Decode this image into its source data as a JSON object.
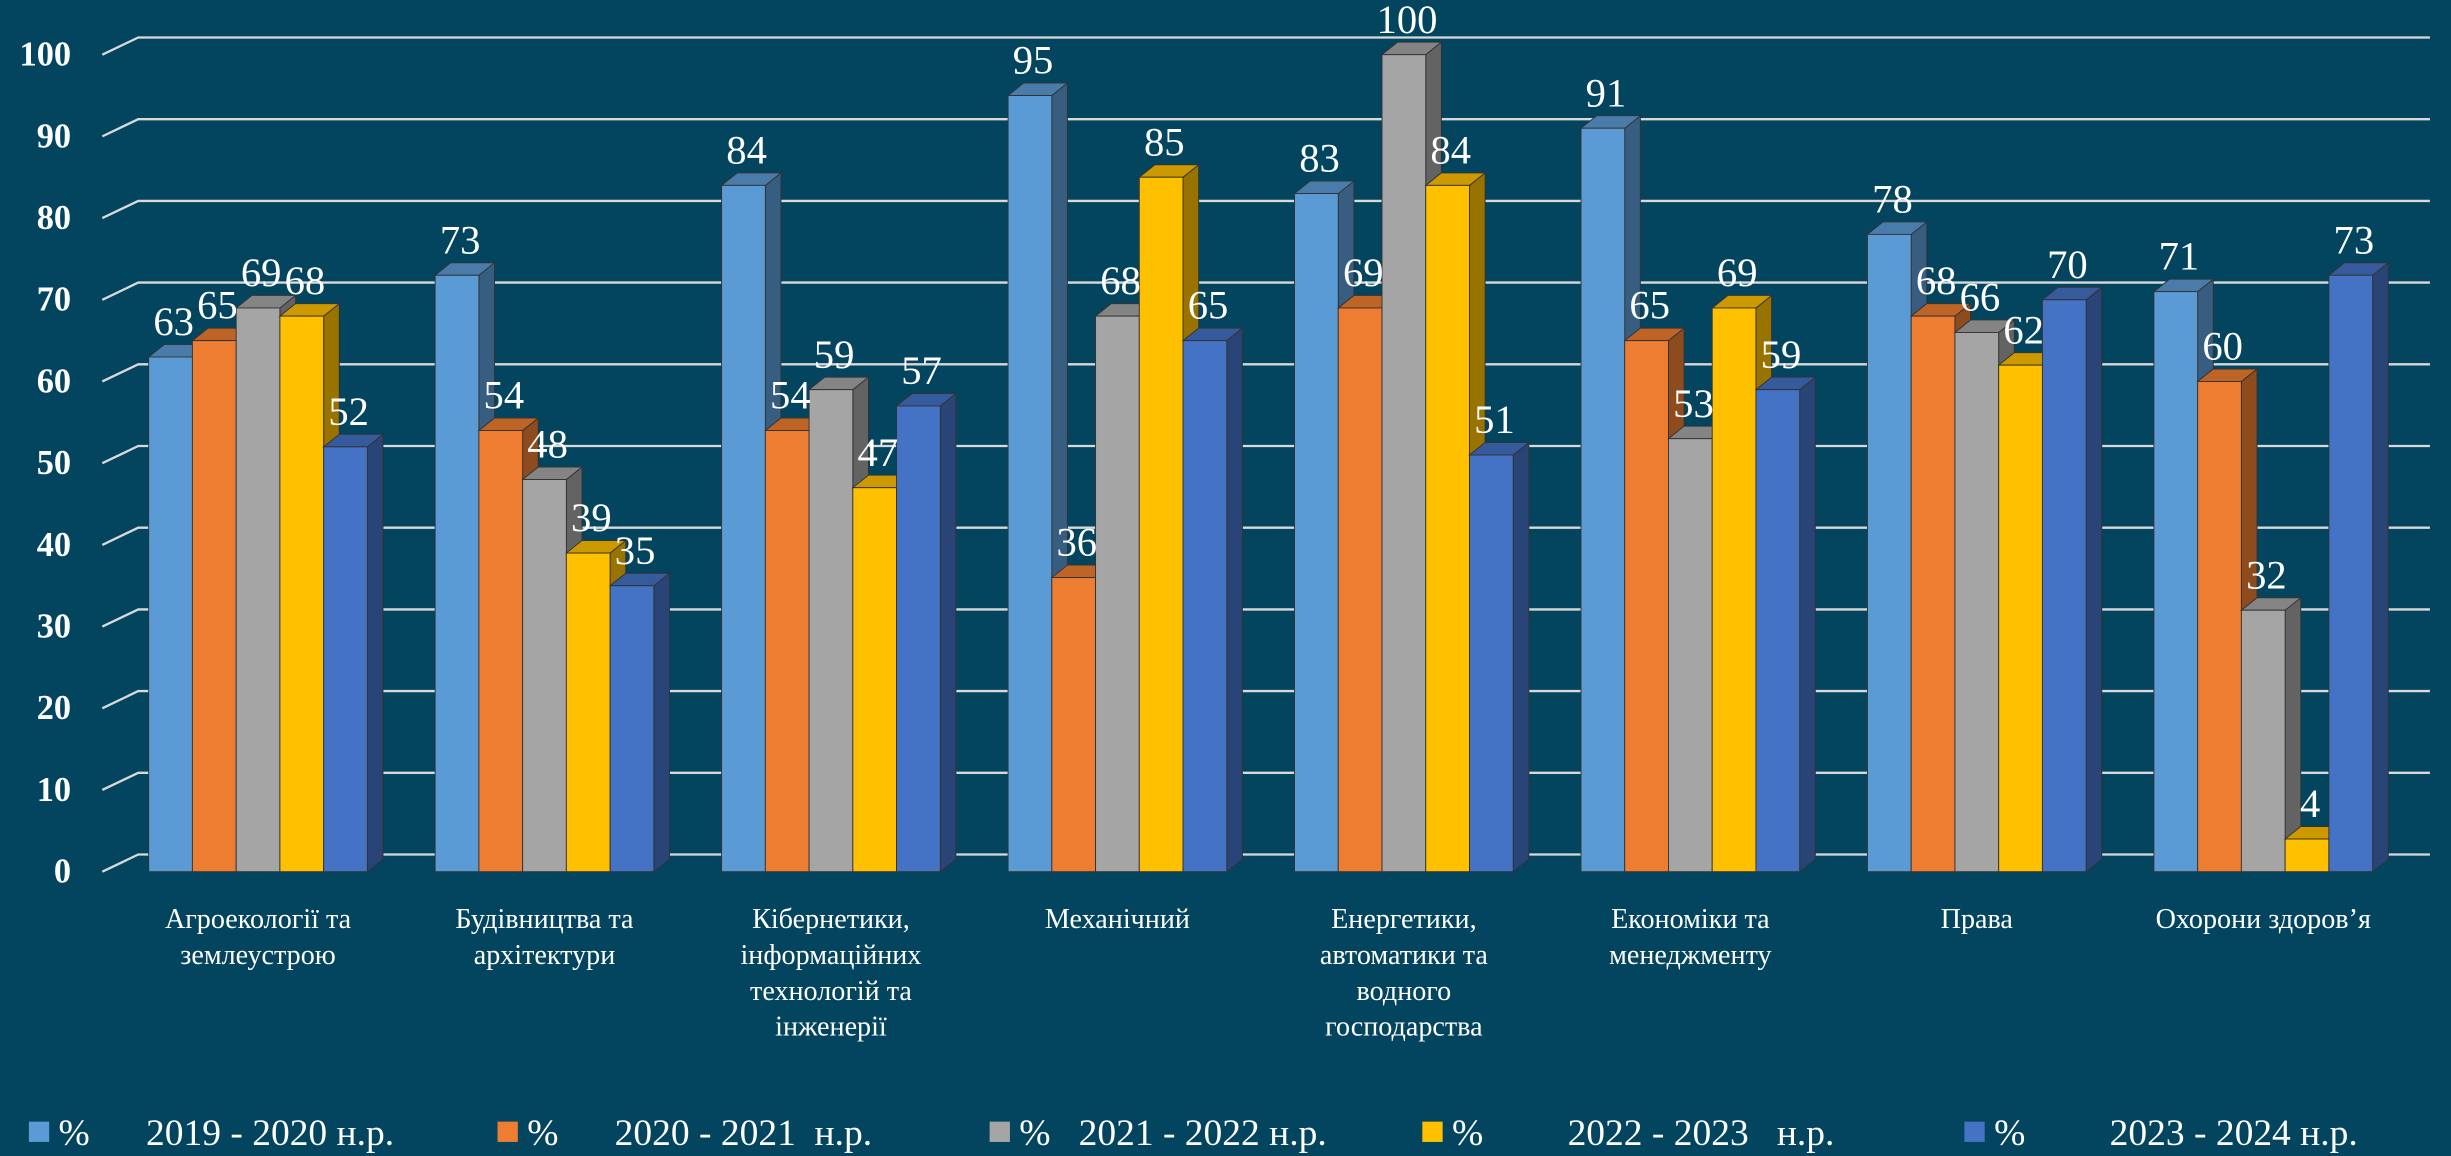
{
  "chart_data": {
    "type": "bar3d",
    "categories": [
      "Агроекології та землеустрою",
      "Будівництва та архітектури",
      "Кібернетики, інформаційних технологій та інженерії",
      "Механічний",
      "Енергетики, автоматики та водного господарства",
      "Економіки та менеджменту",
      "Права",
      "Охорони здоров’я"
    ],
    "series": [
      {
        "name": "%      2019 - 2020 н.р.",
        "color": "#5b9bd5",
        "values": [
          63,
          73,
          84,
          95,
          83,
          91,
          78,
          71
        ]
      },
      {
        "name": "%      2020 - 2021  н.р.",
        "color": "#ed7d31",
        "values": [
          65,
          54,
          54,
          36,
          69,
          65,
          68,
          60
        ]
      },
      {
        "name": "%   2021 - 2022 н.р.",
        "color": "#a5a5a5",
        "values": [
          69,
          48,
          59,
          68,
          100,
          53,
          66,
          32
        ]
      },
      {
        "name": "%         2022 - 2023   н.р.",
        "color": "#ffc000",
        "values": [
          68,
          39,
          47,
          85,
          84,
          69,
          62,
          4
        ]
      },
      {
        "name": "%         2023 - 2024 н.р.",
        "color": "#4472c4",
        "values": [
          52,
          35,
          57,
          65,
          51,
          59,
          70,
          73
        ]
      }
    ],
    "ylim": [
      0,
      100
    ],
    "yticks": [
      0,
      10,
      20,
      30,
      40,
      50,
      60,
      70,
      80,
      90,
      100
    ],
    "grid": true,
    "legend": "bottom"
  }
}
